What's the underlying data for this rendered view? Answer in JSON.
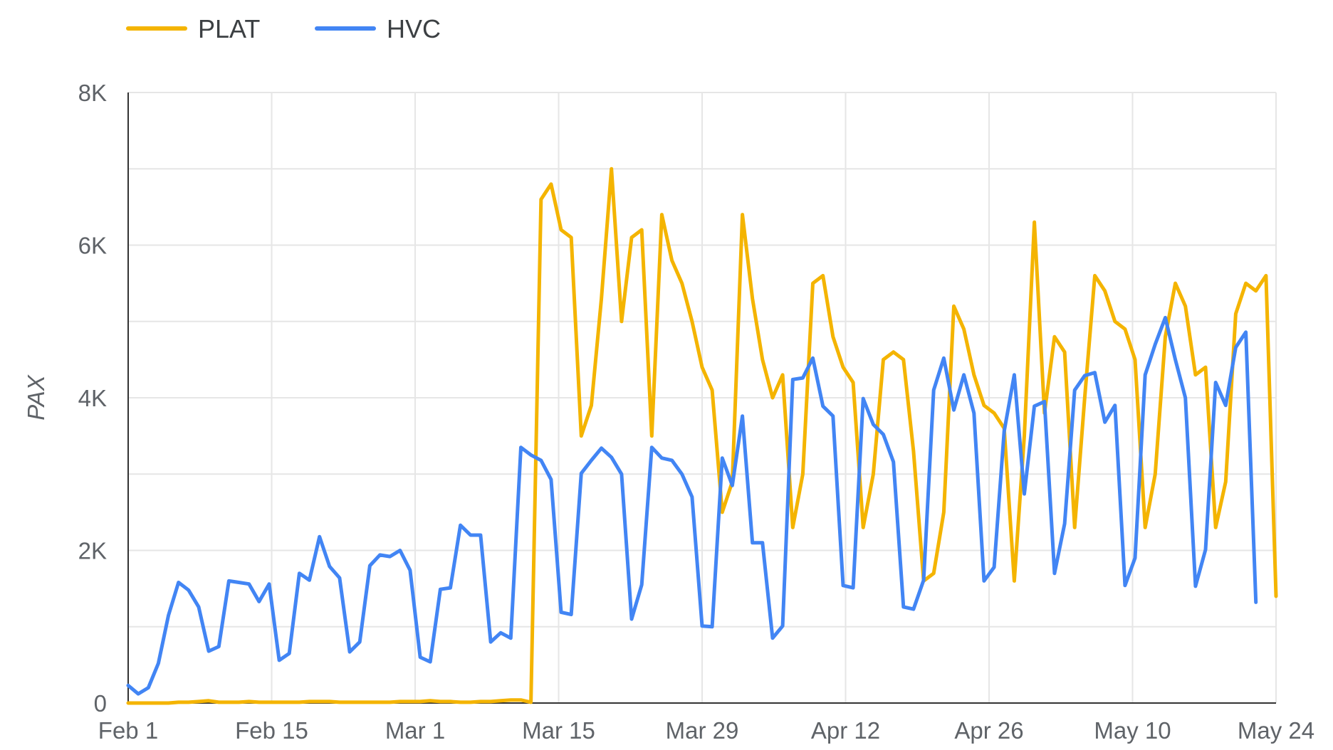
{
  "chart_data": {
    "type": "line",
    "ylabel": "PAX",
    "ylim": [
      0,
      8000
    ],
    "y_ticks": [
      0,
      2000,
      4000,
      6000,
      8000
    ],
    "y_tick_labels": [
      "0",
      "2K",
      "4K",
      "6K",
      "8K"
    ],
    "x_tick_labels": [
      "Feb 1",
      "Feb 15",
      "Mar 1",
      "Mar 15",
      "Mar 29",
      "Apr 12",
      "Apr 26",
      "May 10",
      "May 24"
    ],
    "x_start_label": "Feb 1",
    "x_end_label": "May 24",
    "grid": true,
    "legend_position": "top-left",
    "series": [
      {
        "name": "PLAT",
        "color": "#F4B400",
        "values": [
          0,
          0,
          0,
          0,
          0,
          10,
          10,
          20,
          30,
          10,
          10,
          10,
          20,
          10,
          10,
          10,
          10,
          10,
          20,
          20,
          20,
          10,
          10,
          10,
          10,
          10,
          10,
          20,
          20,
          20,
          30,
          20,
          20,
          10,
          10,
          20,
          20,
          30,
          40,
          40,
          10,
          6600,
          6800,
          6200,
          6100,
          3500,
          3900,
          5300,
          7000,
          5000,
          6100,
          6200,
          3500,
          6400,
          5800,
          5500,
          5000,
          4400,
          4100,
          2500,
          2900,
          6400,
          5300,
          4500,
          4000,
          4300,
          2300,
          3000,
          5500,
          5600,
          4800,
          4400,
          4200,
          2300,
          3000,
          4500,
          4600,
          4500,
          3300,
          1600,
          1700,
          2500,
          5200,
          4900,
          4300,
          3900,
          3800,
          3600,
          1600,
          3500,
          6300,
          3800,
          4800,
          4600,
          2300,
          4000,
          5600,
          5400,
          5000,
          4900,
          4500,
          2300,
          3000,
          4800,
          5500,
          5200,
          4300,
          4400,
          2300,
          2900,
          5100,
          5500,
          5400,
          5600,
          1400
        ]
      },
      {
        "name": "HVC",
        "color": "#4285F4",
        "values": [
          230,
          120,
          200,
          520,
          1150,
          1580,
          1480,
          1260,
          680,
          740,
          1600,
          1580,
          1560,
          1330,
          1560,
          560,
          650,
          1700,
          1610,
          2180,
          1790,
          1640,
          670,
          800,
          1800,
          1940,
          1920,
          2000,
          1740,
          600,
          540,
          1490,
          1510,
          2330,
          2200,
          2200,
          800,
          920,
          850,
          3350,
          3250,
          3180,
          2930,
          1190,
          1160,
          3010,
          3180,
          3340,
          3220,
          3000,
          1100,
          1550,
          3350,
          3210,
          3180,
          3000,
          2700,
          1010,
          1000,
          3210,
          2850,
          3760,
          2100,
          2100,
          850,
          1010,
          4240,
          4260,
          4520,
          3890,
          3760,
          1540,
          1510,
          3990,
          3650,
          3520,
          3160,
          1260,
          1230,
          1610,
          4100,
          4520,
          3840,
          4300,
          3800,
          1600,
          1780,
          3560,
          4300,
          2740,
          3890,
          3950,
          1700,
          2350,
          4100,
          4290,
          4330,
          3680,
          3900,
          1540,
          1900,
          4300,
          4700,
          5050,
          4500,
          4000,
          1530,
          2010,
          4200,
          3900,
          4660,
          4860,
          1320
        ]
      }
    ]
  }
}
